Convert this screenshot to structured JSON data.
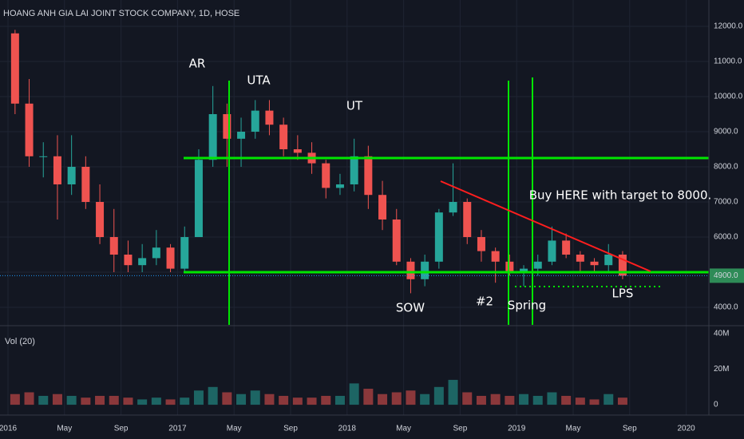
{
  "chart_data": [
    {
      "type": "candlestick",
      "title": "HOANG ANH GIA LAI JOINT STOCK COMPANY, 1D, HOSE",
      "x": [
        "2016-01",
        "2016-02",
        "2016-03",
        "2016-04",
        "2016-05",
        "2016-06",
        "2016-07",
        "2016-08",
        "2016-09",
        "2016-10",
        "2016-11",
        "2016-12",
        "2017-01",
        "2017-02",
        "2017-03",
        "2017-04",
        "2017-05",
        "2017-06",
        "2017-07",
        "2017-08",
        "2017-09",
        "2017-10",
        "2017-11",
        "2017-12",
        "2018-01",
        "2018-02",
        "2018-03",
        "2018-04",
        "2018-05",
        "2018-06",
        "2018-07",
        "2018-08",
        "2018-09",
        "2018-10",
        "2018-11",
        "2018-12",
        "2019-01",
        "2019-02",
        "2019-03",
        "2019-04",
        "2019-05",
        "2019-06",
        "2019-07",
        "2019-08"
      ],
      "open": [
        11800,
        9800,
        8300,
        8300,
        7500,
        8000,
        7000,
        6000,
        5500,
        5200,
        5400,
        5700,
        5100,
        6000,
        8200,
        9500,
        8800,
        9000,
        9600,
        9200,
        8500,
        8400,
        8100,
        7400,
        7500,
        8300,
        7200,
        6500,
        5300,
        4800,
        5300,
        6700,
        7000,
        6000,
        5600,
        5300,
        5000,
        5100,
        5300,
        5900,
        5500,
        5300,
        5200,
        5500
      ],
      "high": [
        11900,
        10500,
        8700,
        8900,
        8900,
        8300,
        7500,
        6800,
        5900,
        5800,
        6200,
        5800,
        6300,
        8500,
        10300,
        9800,
        9400,
        9900,
        9900,
        9400,
        8900,
        8700,
        8200,
        7800,
        8800,
        8600,
        7600,
        6800,
        5400,
        5500,
        6800,
        8100,
        7100,
        6200,
        5700,
        5500,
        5200,
        5500,
        6300,
        6100,
        5600,
        5400,
        5800,
        5600
      ],
      "low": [
        9500,
        8000,
        7700,
        6500,
        7200,
        6800,
        5800,
        5000,
        5000,
        5000,
        5200,
        5000,
        5000,
        6000,
        8000,
        8000,
        8000,
        8800,
        8900,
        8300,
        8200,
        7800,
        7100,
        7200,
        7300,
        6800,
        6200,
        5200,
        4400,
        4600,
        5100,
        6600,
        5800,
        5300,
        4700,
        4900,
        4600,
        4900,
        5200,
        5400,
        5000,
        5000,
        5000,
        4800
      ],
      "close": [
        9800,
        8300,
        8300,
        7500,
        8000,
        7000,
        6000,
        5500,
        5200,
        5400,
        5700,
        5100,
        6000,
        8200,
        9500,
        8800,
        9000,
        9600,
        9200,
        8500,
        8400,
        8100,
        7400,
        7500,
        8300,
        7200,
        6500,
        5300,
        4800,
        5300,
        6700,
        7000,
        6000,
        5600,
        5300,
        5000,
        5100,
        5300,
        5900,
        5500,
        5300,
        5200,
        5500,
        4900
      ],
      "up_color": "#26a69a",
      "down_color": "#ef5350",
      "ylim": [
        3500,
        12750
      ],
      "yticks": [
        {
          "value": 4000,
          "label": "4000.0"
        },
        {
          "value": 5000,
          "label": "5000.0"
        },
        {
          "value": 6000,
          "label": "6000.0"
        },
        {
          "value": 7000,
          "label": "7000.0"
        },
        {
          "value": 8000,
          "label": "8000.0"
        },
        {
          "value": 9000,
          "label": "9000.0"
        },
        {
          "value": 10000,
          "label": "10000.0"
        },
        {
          "value": 11000,
          "label": "11000.0"
        },
        {
          "value": 12000,
          "label": "12000.0"
        }
      ],
      "xticks": [
        {
          "value": "2016-01",
          "label": "2016"
        },
        {
          "value": "2016-05",
          "label": "May"
        },
        {
          "value": "2016-09",
          "label": "Sep"
        },
        {
          "value": "2017-01",
          "label": "2017"
        },
        {
          "value": "2017-05",
          "label": "May"
        },
        {
          "value": "2017-09",
          "label": "Sep"
        },
        {
          "value": "2018-01",
          "label": "2018"
        },
        {
          "value": "2018-05",
          "label": "May"
        },
        {
          "value": "2018-09",
          "label": "Sep"
        },
        {
          "value": "2019-01",
          "label": "2019"
        },
        {
          "value": "2019-05",
          "label": "May"
        },
        {
          "value": "2019-09",
          "label": "Sep"
        },
        {
          "value": "2020-01",
          "label": "2020"
        }
      ],
      "last_price": {
        "value": 4900,
        "label": "4900.0"
      },
      "annotations": [
        "AR",
        "UTA",
        "UT",
        "SOW",
        "#2",
        "Spring",
        "LPS",
        "Buy HERE with target to 8000."
      ],
      "grid": true
    },
    {
      "type": "bar",
      "title": "Vol (20)",
      "values": [
        6,
        7,
        5,
        6,
        5,
        4,
        5,
        5,
        4,
        3,
        4,
        3,
        4,
        8,
        10,
        7,
        6,
        8,
        6,
        5,
        4,
        4,
        5,
        5,
        12,
        9,
        6,
        7,
        8,
        6,
        10,
        14,
        7,
        5,
        6,
        5,
        6,
        5,
        7,
        5,
        4,
        3,
        6,
        4
      ],
      "ylim": [
        -5.8,
        43.6
      ],
      "yticks": [
        {
          "value": 0,
          "label": "0"
        },
        {
          "value": 20,
          "label": "20M"
        },
        {
          "value": 40,
          "label": "40M"
        }
      ]
    }
  ]
}
